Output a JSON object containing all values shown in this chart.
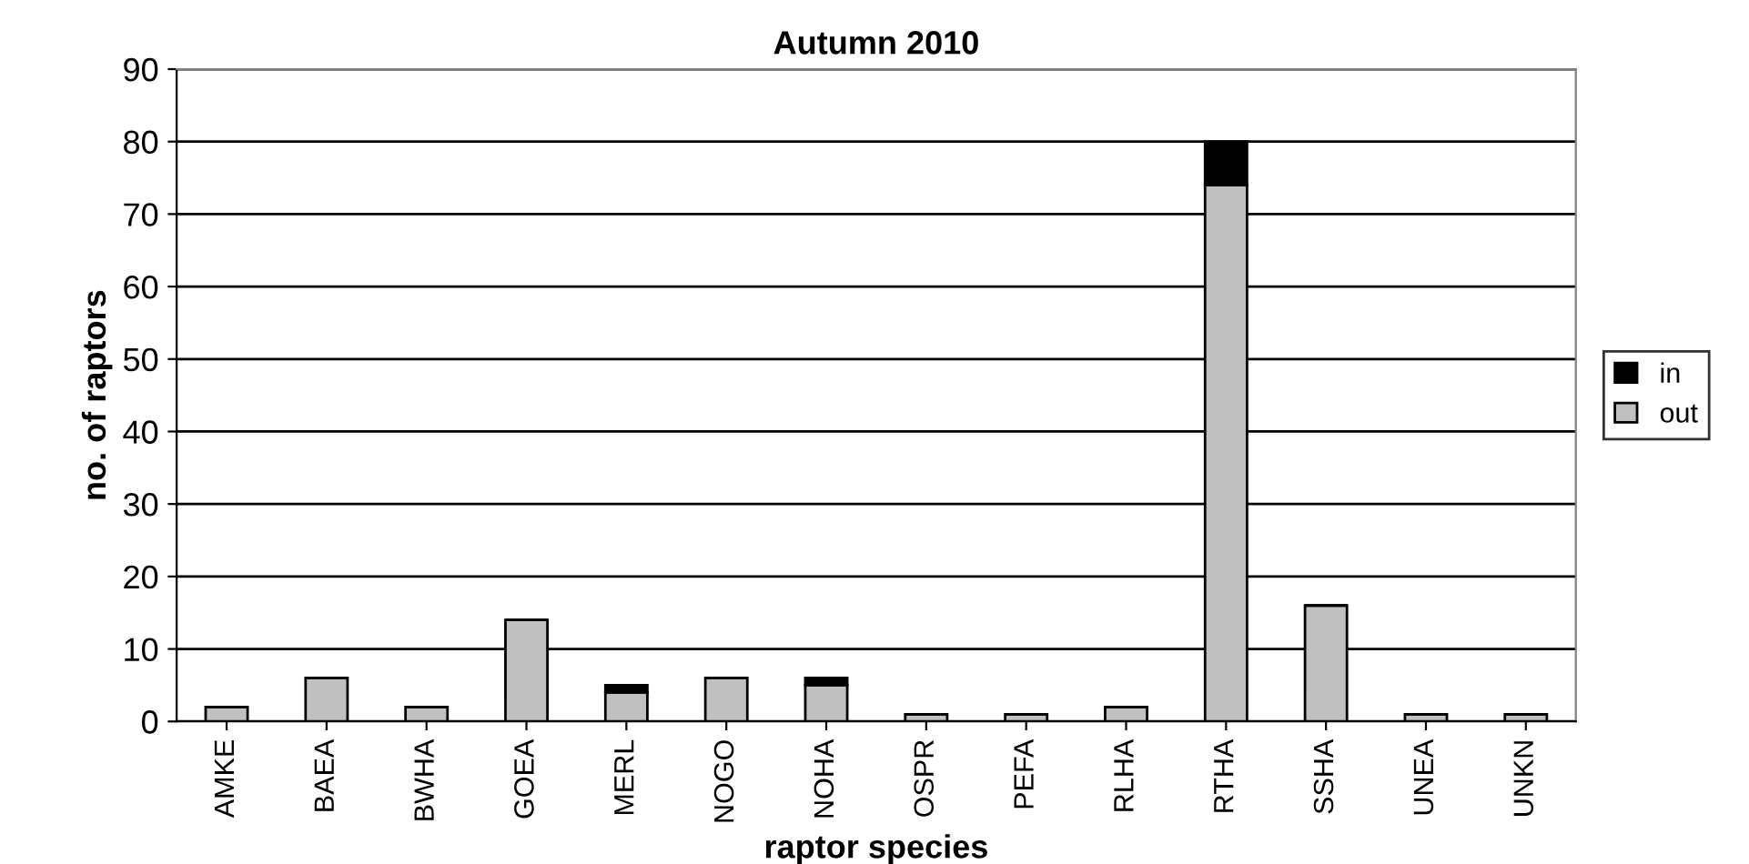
{
  "chart_data": {
    "type": "bar",
    "title": "Autumn 2010",
    "xlabel": "raptor species",
    "ylabel": "no. of raptors",
    "categories": [
      "AMKE",
      "BAEA",
      "BWHA",
      "GOEA",
      "MERL",
      "NOGO",
      "NOHA",
      "OSPR",
      "PEFA",
      "RLHA",
      "RTHA",
      "SSHA",
      "UNEA",
      "UNKN"
    ],
    "series": [
      {
        "name": "out",
        "color": "#c0c0c0",
        "values": [
          2,
          6,
          2,
          14,
          4,
          6,
          5,
          1,
          1,
          2,
          74,
          16,
          1,
          1
        ]
      },
      {
        "name": "in",
        "color": "#000000",
        "values": [
          0,
          0,
          0,
          0,
          1,
          0,
          1,
          0,
          0,
          0,
          6,
          0,
          0,
          0
        ]
      }
    ],
    "stacked": true,
    "ylim": [
      0,
      90
    ],
    "yticks": [
      0,
      10,
      20,
      30,
      40,
      50,
      60,
      70,
      80,
      90
    ],
    "grid": "y",
    "legend": "right"
  }
}
